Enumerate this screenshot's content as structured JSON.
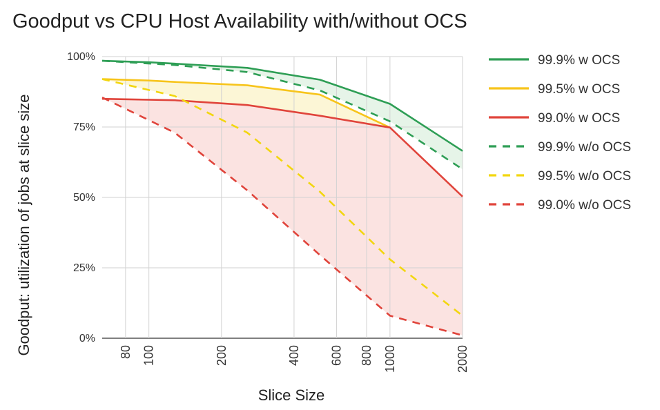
{
  "chart_data": {
    "type": "line",
    "title": "Goodput vs CPU Host Availability with/without OCS",
    "xlabel": "Slice Size",
    "ylabel": "Goodput: utilization of jobs at slice size",
    "x_scale": "log",
    "xlim": [
      64,
      2000
    ],
    "ylim": [
      0,
      100
    ],
    "x_ticks": [
      80,
      100,
      200,
      400,
      600,
      800,
      1000,
      2000
    ],
    "x_tick_labels": [
      "80",
      "100",
      "200",
      "400",
      "600",
      "800",
      "1000",
      "2000"
    ],
    "y_ticks": [
      0,
      25,
      50,
      75,
      100
    ],
    "y_tick_labels": [
      "0%",
      "25%",
      "50%",
      "75%",
      "100%"
    ],
    "grid": true,
    "legend_position": "right",
    "series": [
      {
        "name": "99.9% w OCS",
        "color": "#2e9e55",
        "dash": "solid",
        "x": [
          64,
          100,
          128,
          256,
          512,
          1000,
          2000
        ],
        "y": [
          98.5,
          98.0,
          97.5,
          96.0,
          91.8,
          83.2,
          66.5
        ]
      },
      {
        "name": "99.5% w OCS",
        "color": "#f7c41b",
        "dash": "solid",
        "x": [
          64,
          100,
          128,
          256,
          512,
          1000
        ],
        "y": [
          92.0,
          91.5,
          91.0,
          89.8,
          86.5,
          74.8
        ]
      },
      {
        "name": "99.0% w OCS",
        "color": "#e0443b",
        "dash": "solid",
        "x": [
          64,
          128,
          256,
          512,
          1000,
          2000
        ],
        "y": [
          85.0,
          84.5,
          82.8,
          79.0,
          74.8,
          50.3
        ]
      },
      {
        "name": "99.9% w/o OCS",
        "color": "#2e9e55",
        "dash": "dashed",
        "x": [
          64,
          128,
          256,
          512,
          1000,
          2000
        ],
        "y": [
          98.5,
          97.0,
          94.5,
          88.0,
          77.0,
          60.0
        ]
      },
      {
        "name": "99.5% w/o OCS",
        "color": "#f2d60f",
        "dash": "dashed",
        "x": [
          64,
          128,
          256,
          512,
          1000,
          2000
        ],
        "y": [
          92.0,
          86.0,
          73.0,
          52.0,
          28.0,
          8.0
        ]
      },
      {
        "name": "99.0% w/o OCS",
        "color": "#e0443b",
        "dash": "dashed",
        "x": [
          64,
          128,
          256,
          512,
          1000,
          2000
        ],
        "y": [
          85.5,
          73.0,
          52.5,
          29.5,
          8.0,
          1.0
        ]
      }
    ],
    "shaded_regions": [
      {
        "between": [
          "99.9% w OCS",
          "99.9% w/o OCS"
        ],
        "color": "#e6f4e8"
      },
      {
        "between": [
          "99.5% w OCS",
          "99.5% w/o OCS"
        ],
        "color": "#fcf6d6"
      },
      {
        "between": [
          "99.0% w OCS",
          "99.0% w/o OCS"
        ],
        "color": "#fbe3e1"
      }
    ]
  }
}
